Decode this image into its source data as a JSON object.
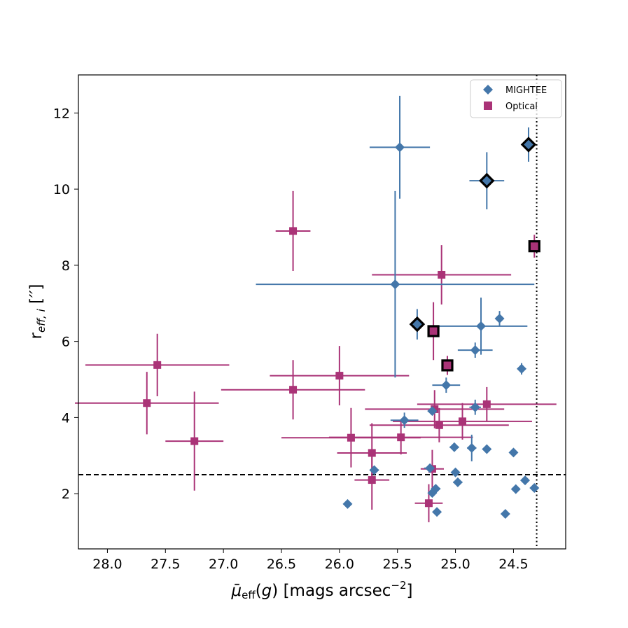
{
  "chart_data": {
    "type": "scatter",
    "title": "",
    "xlabel": "μ̄_eff(g) [mags arcsec⁻²]",
    "ylabel": "r_eff,i ['']",
    "xlim": [
      28.25,
      24.05
    ],
    "ylim": [
      0.55,
      13.0
    ],
    "x_ticks": [
      28.0,
      27.5,
      27.0,
      26.5,
      26.0,
      25.5,
      25.0,
      24.5
    ],
    "x_tick_labels": [
      "28.0",
      "27.5",
      "27.0",
      "26.5",
      "26.0",
      "25.5",
      "25.0",
      "24.5"
    ],
    "y_ticks": [
      2,
      4,
      6,
      8,
      10,
      12
    ],
    "y_tick_labels": [
      "2",
      "4",
      "6",
      "8",
      "10",
      "12"
    ],
    "hline": 2.5,
    "vline": 24.3,
    "legend": {
      "position": "top-right",
      "entries": [
        "MIGHTEE",
        "Optical"
      ]
    },
    "colors": {
      "mightee": "#4477aa",
      "optical": "#aa3377",
      "highlight_edge": "#000000"
    },
    "series": [
      {
        "name": "MIGHTEE",
        "marker": "diamond",
        "points": [
          {
            "x": 25.48,
            "y": 11.1,
            "xerr": 0.26,
            "yerr": 1.35
          },
          {
            "x": 25.52,
            "y": 7.5,
            "xerr": 1.2,
            "yerr": 2.45
          },
          {
            "x": 24.78,
            "y": 6.4,
            "xerr": 0.4,
            "yerr": 0.75
          },
          {
            "x": 24.62,
            "y": 6.6,
            "xerr": 0.03,
            "yerr": 0.2
          },
          {
            "x": 24.83,
            "y": 5.77,
            "xerr": 0.15,
            "yerr": 0.2
          },
          {
            "x": 24.43,
            "y": 5.28,
            "xerr": 0.03,
            "yerr": 0.15
          },
          {
            "x": 25.08,
            "y": 4.85,
            "xerr": 0.12,
            "yerr": 0.2
          },
          {
            "x": 25.2,
            "y": 4.17,
            "xerr": 0.04,
            "yerr": 0.08
          },
          {
            "x": 24.83,
            "y": 4.27,
            "xerr": 0.05,
            "yerr": 0.2
          },
          {
            "x": 25.44,
            "y": 3.93,
            "xerr": 0.12,
            "yerr": 0.2
          },
          {
            "x": 25.01,
            "y": 3.22,
            "xerr": 0.04,
            "yerr": 0.08
          },
          {
            "x": 24.86,
            "y": 3.2,
            "xerr": 0.04,
            "yerr": 0.35
          },
          {
            "x": 24.73,
            "y": 3.17,
            "xerr": 0.03,
            "yerr": 0.06
          },
          {
            "x": 24.5,
            "y": 3.08,
            "xerr": 0.03,
            "yerr": 0.06
          },
          {
            "x": 25.7,
            "y": 2.62,
            "xerr": 0.04,
            "yerr": 0.1
          },
          {
            "x": 25.22,
            "y": 2.67,
            "xerr": 0.05,
            "yerr": 0.08
          },
          {
            "x": 25.0,
            "y": 2.56,
            "xerr": 0.03,
            "yerr": 0.06
          },
          {
            "x": 24.98,
            "y": 2.3,
            "xerr": 0.04,
            "yerr": 0.06
          },
          {
            "x": 24.4,
            "y": 2.35,
            "xerr": 0.03,
            "yerr": 0.06
          },
          {
            "x": 24.48,
            "y": 2.12,
            "xerr": 0.03,
            "yerr": 0.06
          },
          {
            "x": 24.32,
            "y": 2.15,
            "xerr": 0.03,
            "yerr": 0.06
          },
          {
            "x": 25.17,
            "y": 2.13,
            "xerr": 0.04,
            "yerr": 0.06
          },
          {
            "x": 25.2,
            "y": 2.02,
            "xerr": 0.03,
            "yerr": 0.06
          },
          {
            "x": 25.93,
            "y": 1.73,
            "xerr": 0.03,
            "yerr": 0.05
          },
          {
            "x": 25.16,
            "y": 1.52,
            "xerr": 0.03,
            "yerr": 0.05
          },
          {
            "x": 24.57,
            "y": 1.47,
            "xerr": 0.03,
            "yerr": 0.05
          },
          {
            "x": 24.37,
            "y": 11.17,
            "xerr": 0.03,
            "yerr": 0.45,
            "highlight": true
          },
          {
            "x": 24.73,
            "y": 10.22,
            "xerr": 0.15,
            "yerr": 0.75,
            "highlight": true
          },
          {
            "x": 25.33,
            "y": 6.45,
            "xerr": 0.03,
            "yerr": 0.4,
            "highlight": true
          }
        ]
      },
      {
        "name": "Optical",
        "marker": "square",
        "points": [
          {
            "x": 26.4,
            "y": 8.9,
            "xerr": 0.15,
            "yerr": 1.05
          },
          {
            "x": 25.12,
            "y": 7.75,
            "xerr": 0.6,
            "yerr": 0.78
          },
          {
            "x": 27.57,
            "y": 5.38,
            "xerr": 0.62,
            "yerr": 0.82
          },
          {
            "x": 26.0,
            "y": 5.1,
            "xerr": 0.6,
            "yerr": 0.78
          },
          {
            "x": 26.4,
            "y": 4.73,
            "xerr": 0.62,
            "yerr": 0.78
          },
          {
            "x": 27.66,
            "y": 4.38,
            "xerr": 0.62,
            "yerr": 0.82
          },
          {
            "x": 24.73,
            "y": 4.35,
            "xerr": 0.6,
            "yerr": 0.45
          },
          {
            "x": 25.18,
            "y": 4.22,
            "xerr": 0.6,
            "yerr": 0.5
          },
          {
            "x": 24.94,
            "y": 3.9,
            "xerr": 0.6,
            "yerr": 0.48
          },
          {
            "x": 25.14,
            "y": 3.8,
            "xerr": 0.6,
            "yerr": 0.45
          },
          {
            "x": 25.9,
            "y": 3.47,
            "xerr": 0.6,
            "yerr": 0.78
          },
          {
            "x": 25.47,
            "y": 3.48,
            "xerr": 0.62,
            "yerr": 0.45
          },
          {
            "x": 27.25,
            "y": 3.38,
            "xerr": 0.25,
            "yerr": 1.3
          },
          {
            "x": 25.72,
            "y": 3.07,
            "xerr": 0.3,
            "yerr": 0.78
          },
          {
            "x": 25.2,
            "y": 2.65,
            "xerr": 0.1,
            "yerr": 0.5
          },
          {
            "x": 25.72,
            "y": 2.36,
            "xerr": 0.15,
            "yerr": 0.78
          },
          {
            "x": 25.23,
            "y": 1.75,
            "xerr": 0.12,
            "yerr": 0.5
          },
          {
            "x": 24.32,
            "y": 8.5,
            "xerr": 0.03,
            "yerr": 0.3,
            "highlight": true
          },
          {
            "x": 25.19,
            "y": 6.27,
            "xerr": 0.03,
            "yerr": 0.76,
            "highlight": true
          },
          {
            "x": 25.07,
            "y": 5.37,
            "xerr": 0.03,
            "yerr": 0.25,
            "highlight": true
          }
        ]
      }
    ]
  }
}
